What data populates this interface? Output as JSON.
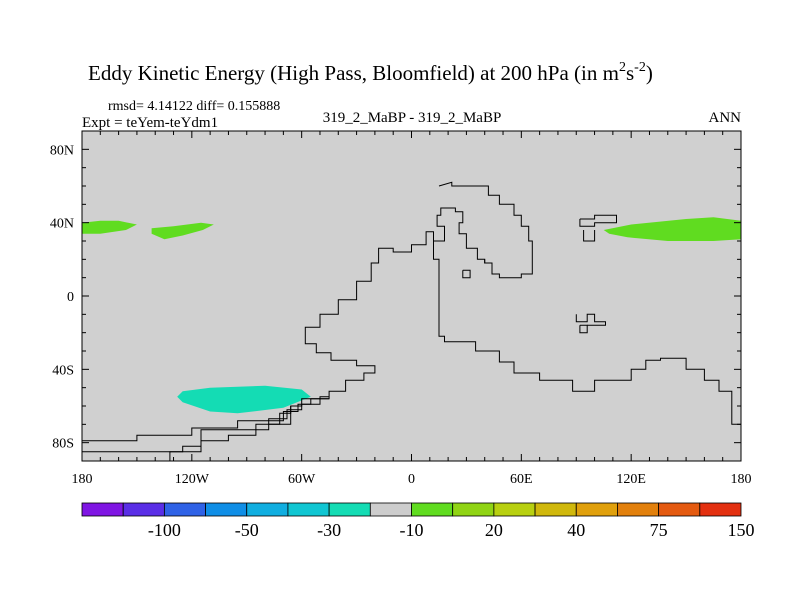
{
  "chart_data": {
    "type": "heatmap",
    "title": "Eddy Kinetic Energy (High Pass, Bloomfield) at 200 hPa (in m",
    "title_unit_m_exp": "2",
    "title_unit_s": "s",
    "title_unit_s_exp": "-2",
    "title_close": ")",
    "stats_text": "rmsd= 4.14122 diff= 0.155888",
    "expt_text": "Expt = teYem-teYdm1",
    "center_text": "319_2_MaBP - 319_2_MaBP",
    "season_text": "ANN",
    "x_range": [
      -180,
      180
    ],
    "y_range": [
      -90,
      90
    ],
    "x_ticks": [
      {
        "value": -180,
        "label": "180"
      },
      {
        "value": -120,
        "label": "120W"
      },
      {
        "value": -60,
        "label": "60W"
      },
      {
        "value": 0,
        "label": "0"
      },
      {
        "value": 60,
        "label": "60E"
      },
      {
        "value": 120,
        "label": "120E"
      },
      {
        "value": 180,
        "label": "180"
      }
    ],
    "y_ticks": [
      {
        "value": 80,
        "label": "80N"
      },
      {
        "value": 40,
        "label": "40N"
      },
      {
        "value": 0,
        "label": "0"
      },
      {
        "value": -40,
        "label": "40S"
      },
      {
        "value": -80,
        "label": "80S"
      }
    ],
    "colorbar": {
      "colors": [
        "#7f15e3",
        "#5a2ee6",
        "#2f62e6",
        "#0f8ee6",
        "#10aee0",
        "#10c6d2",
        "#14dcb4",
        "#cdcdcd",
        "#60dc20",
        "#90d414",
        "#b8d010",
        "#d0b80c",
        "#e0a00c",
        "#e2800c",
        "#e45a10",
        "#e33010"
      ],
      "labels": [
        {
          "index": 2,
          "text": "-100"
        },
        {
          "index": 4,
          "text": "-50"
        },
        {
          "index": 6,
          "text": "-30"
        },
        {
          "index": 8,
          "text": "-10"
        },
        {
          "index": 10,
          "text": "20"
        },
        {
          "index": 12,
          "text": "40"
        },
        {
          "index": 14,
          "text": "75"
        },
        {
          "index": 16,
          "text": "150"
        }
      ]
    },
    "background_color": "#d0d0d0",
    "regions": [
      {
        "name": "positive-anomaly-west-40n",
        "color": "#60dc20",
        "points": [
          [
            -180,
            40
          ],
          [
            -170,
            41
          ],
          [
            -160,
            41
          ],
          [
            -150,
            39
          ],
          [
            -156,
            36
          ],
          [
            -170,
            34
          ],
          [
            -180,
            34
          ]
        ]
      },
      {
        "name": "positive-anomaly-central-pacific-40n",
        "color": "#60dc20",
        "points": [
          [
            -142,
            37
          ],
          [
            -130,
            38
          ],
          [
            -115,
            40
          ],
          [
            -108,
            39
          ],
          [
            -114,
            36
          ],
          [
            -125,
            33
          ],
          [
            -135,
            31
          ],
          [
            -142,
            34
          ]
        ]
      },
      {
        "name": "positive-anomaly-east-40n",
        "color": "#60dc20",
        "points": [
          [
            105,
            36
          ],
          [
            120,
            39
          ],
          [
            150,
            42
          ],
          [
            165,
            43
          ],
          [
            180,
            41
          ],
          [
            180,
            31
          ],
          [
            165,
            30
          ],
          [
            140,
            30
          ],
          [
            118,
            32
          ],
          [
            108,
            34
          ]
        ]
      },
      {
        "name": "negative-anomaly-south-pacific-50s",
        "color": "#14dcb4",
        "points": [
          [
            -125,
            -52
          ],
          [
            -110,
            -50
          ],
          [
            -80,
            -49
          ],
          [
            -60,
            -51
          ],
          [
            -55,
            -55
          ],
          [
            -70,
            -61
          ],
          [
            -95,
            -64
          ],
          [
            -110,
            -63
          ],
          [
            -125,
            -58
          ],
          [
            -128,
            -55
          ]
        ]
      }
    ],
    "contours": [
      [
        [
          -132,
          -90
        ],
        [
          -132,
          -85
        ],
        [
          -125,
          -85
        ],
        [
          -125,
          -82
        ],
        [
          -115,
          -82
        ],
        [
          -115,
          -79
        ],
        [
          -100,
          -79
        ],
        [
          -100,
          -76
        ],
        [
          -85,
          -76
        ],
        [
          -85,
          -73
        ],
        [
          -78,
          -73
        ],
        [
          -78,
          -70
        ],
        [
          -72,
          -70
        ],
        [
          -72,
          -64
        ],
        [
          -66,
          -64
        ],
        [
          -66,
          -60
        ],
        [
          -60,
          -60
        ],
        [
          -60,
          -56
        ],
        [
          -45,
          -56
        ],
        [
          -45,
          -52
        ],
        [
          -36,
          -52
        ],
        [
          -36,
          -46
        ],
        [
          -26,
          -46
        ],
        [
          -26,
          -42
        ],
        [
          -20,
          -42
        ],
        [
          -20,
          -38
        ],
        [
          -30,
          -38
        ],
        [
          -30,
          -35
        ],
        [
          -44,
          -35
        ],
        [
          -44,
          -31
        ],
        [
          -52,
          -31
        ],
        [
          -52,
          -26
        ],
        [
          -58,
          -26
        ],
        [
          -58,
          -17
        ],
        [
          -50,
          -17
        ],
        [
          -50,
          -10
        ],
        [
          -40,
          -10
        ],
        [
          -40,
          -2
        ],
        [
          -30,
          -2
        ],
        [
          -30,
          8
        ],
        [
          -22,
          8
        ],
        [
          -22,
          18
        ],
        [
          -18,
          18
        ],
        [
          -18,
          26
        ],
        [
          -10,
          26
        ],
        [
          -10,
          24
        ],
        [
          0,
          24
        ],
        [
          0,
          28
        ],
        [
          8,
          28
        ],
        [
          8,
          35
        ],
        [
          12,
          35
        ],
        [
          12,
          20
        ],
        [
          15,
          20
        ],
        [
          15,
          -22
        ],
        [
          18,
          -22
        ],
        [
          18,
          -25
        ],
        [
          35,
          -25
        ],
        [
          35,
          -30
        ],
        [
          48,
          -30
        ],
        [
          48,
          -36
        ],
        [
          56,
          -36
        ],
        [
          56,
          -42
        ],
        [
          70,
          -42
        ],
        [
          70,
          -46
        ],
        [
          88,
          -46
        ],
        [
          88,
          -52
        ],
        [
          100,
          -52
        ],
        [
          100,
          -46
        ],
        [
          120,
          -46
        ],
        [
          120,
          -40
        ],
        [
          128,
          -40
        ],
        [
          128,
          -35
        ],
        [
          136,
          -35
        ],
        [
          136,
          -34
        ],
        [
          150,
          -34
        ],
        [
          150,
          -40
        ],
        [
          160,
          -40
        ],
        [
          160,
          -46
        ],
        [
          168,
          -46
        ],
        [
          168,
          -52
        ],
        [
          175,
          -52
        ],
        [
          175,
          -70
        ],
        [
          180,
          -70
        ],
        [
          180,
          -79
        ]
      ],
      [
        [
          -180,
          -79
        ],
        [
          -150,
          -79
        ],
        [
          -150,
          -76
        ],
        [
          -120,
          -76
        ],
        [
          -120,
          -72
        ],
        [
          -95,
          -72
        ],
        [
          -95,
          -68
        ],
        [
          -70,
          -68
        ],
        [
          -70,
          -63
        ],
        [
          -62,
          -63
        ],
        [
          -62,
          -59
        ],
        [
          -55,
          -59
        ],
        [
          -55,
          -56
        ],
        [
          -45,
          -56
        ]
      ],
      [
        [
          -115,
          -82
        ],
        [
          -115,
          -85
        ],
        [
          -180,
          -85
        ]
      ],
      [
        [
          -66,
          -60
        ],
        [
          -66,
          -70
        ],
        [
          -85,
          -70
        ],
        [
          -85,
          -73
        ],
        [
          -115,
          -73
        ],
        [
          -115,
          -79
        ]
      ],
      [
        [
          -78,
          -70
        ],
        [
          -78,
          -67
        ],
        [
          -68,
          -67
        ],
        [
          -68,
          -62
        ],
        [
          -60,
          -62
        ],
        [
          -60,
          -59
        ],
        [
          -50,
          -59
        ],
        [
          -50,
          -55
        ],
        [
          -45,
          -55
        ]
      ],
      [
        [
          15,
          60
        ],
        [
          22,
          62
        ],
        [
          22,
          60
        ],
        [
          42,
          60
        ],
        [
          42,
          55
        ],
        [
          48,
          55
        ],
        [
          48,
          50
        ],
        [
          56,
          50
        ],
        [
          56,
          44
        ],
        [
          60,
          44
        ],
        [
          60,
          38
        ],
        [
          64,
          38
        ],
        [
          64,
          30
        ],
        [
          66,
          30
        ],
        [
          66,
          12
        ],
        [
          60,
          12
        ],
        [
          60,
          10
        ],
        [
          48,
          10
        ],
        [
          48,
          12
        ],
        [
          44,
          12
        ],
        [
          44,
          18
        ],
        [
          40,
          18
        ],
        [
          40,
          20
        ],
        [
          36,
          20
        ],
        [
          36,
          26
        ],
        [
          30,
          26
        ],
        [
          30,
          34
        ],
        [
          26,
          34
        ],
        [
          26,
          40
        ],
        [
          28,
          40
        ],
        [
          28,
          46
        ],
        [
          24,
          46
        ],
        [
          24,
          48
        ],
        [
          16,
          48
        ],
        [
          16,
          44
        ],
        [
          14,
          44
        ],
        [
          14,
          38
        ],
        [
          18,
          38
        ],
        [
          18,
          30
        ],
        [
          12,
          30
        ],
        [
          12,
          35
        ]
      ],
      [
        [
          28,
          14
        ],
        [
          28,
          10
        ],
        [
          32,
          10
        ],
        [
          32,
          14
        ],
        [
          28,
          14
        ]
      ],
      [
        [
          40,
          20
        ],
        [
          40,
          18
        ],
        [
          44,
          18
        ]
      ],
      [
        [
          92,
          42
        ],
        [
          100,
          42
        ],
        [
          100,
          44
        ],
        [
          112,
          44
        ],
        [
          112,
          40
        ],
        [
          100,
          40
        ],
        [
          100,
          38
        ],
        [
          92,
          38
        ],
        [
          92,
          42
        ]
      ],
      [
        [
          94,
          36
        ],
        [
          94,
          30
        ],
        [
          100,
          30
        ],
        [
          100,
          36
        ]
      ],
      [
        [
          90,
          -10
        ],
        [
          90,
          -14
        ],
        [
          96,
          -14
        ],
        [
          96,
          -10
        ],
        [
          100,
          -10
        ],
        [
          100,
          -14
        ],
        [
          106,
          -14
        ],
        [
          106,
          -16
        ],
        [
          96,
          -16
        ]
      ],
      [
        [
          92,
          -16
        ],
        [
          92,
          -20
        ],
        [
          96,
          -20
        ],
        [
          96,
          -16
        ],
        [
          92,
          -16
        ]
      ]
    ]
  }
}
